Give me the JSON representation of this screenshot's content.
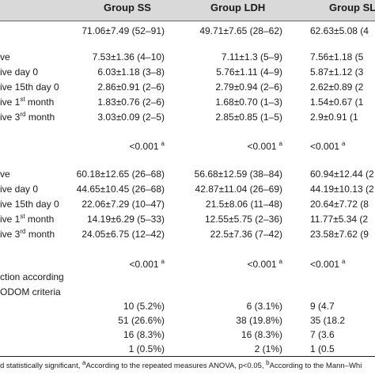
{
  "header": {
    "col1": "Group SS",
    "col2": "Group LDH",
    "col3": "Group SLI"
  },
  "rows": [
    {
      "label": "",
      "c1": "71.06±7.49 (52–91)",
      "c2": "49.71±7.65 (28–62)",
      "c3": "62.63±5.08 (4"
    },
    {
      "label": "ve",
      "c1": "7.53±1.36 (4–10)",
      "c2": "7.11±1.3 (5–9)",
      "c3": "7.56±1.18 (5"
    },
    {
      "label": "ive day 0",
      "c1": "6.03±1.18 (3–8)",
      "c2": "5.76±1.11 (4–9)",
      "c3": "5.87±1.12 (3"
    },
    {
      "label": "ive 15th day 0",
      "c1": "2.86±0.91 (2–6)",
      "c2": "2.79±0.94 (2–6)",
      "c3": "2.62±0.89 (2"
    },
    {
      "label_pre": "ive 1",
      "label_sup": "st",
      "label_post": " month",
      "c1": "1.83±0.76 (2–6)",
      "c2": "1.68±0.70 (1–3)",
      "c3": "1.54±0.67 (1"
    },
    {
      "label_pre": "ive 3",
      "label_sup": "rd",
      "label_post": " month",
      "c1": "3.03±0.09 (2–5)",
      "c2": "2.85±0.85 (1–5)",
      "c3": "2.9±0.91 (1"
    },
    {
      "label": "",
      "c1": "<0.001",
      "c1_sup": "a",
      "c2": "<0.001",
      "c2_sup": "a",
      "c3": "<0.001",
      "c3_sup": "a"
    },
    {
      "label": "ve",
      "c1": "60.18±12.65 (26–68)",
      "c2": "56.68±12.59 (38–84)",
      "c3": "60.94±12.44 (2"
    },
    {
      "label": "ive day 0",
      "c1": "44.65±10.45 (26–68)",
      "c2": "42.87±11.04 (26–69)",
      "c3": "44.19±10.13 (2"
    },
    {
      "label": "ive 15th day 0",
      "c1": "22.06±7.29 (10–47)",
      "c2": "21.5±8.06 (11–48)",
      "c3": "20.64±7.72 (8"
    },
    {
      "label_pre": "ive 1",
      "label_sup": "st",
      "label_post": " month",
      "c1": "14.19±6.29 (5–33)",
      "c2": "12.55±5.75 (2–36)",
      "c3": "11.77±5.34 (2"
    },
    {
      "label_pre": "ive 3",
      "label_sup": "rd",
      "label_post": " month",
      "c1": "24.05±6.75 (12–42)",
      "c2": "22.5±7.36 (7–42)",
      "c3": "23.58±7.62 (9"
    },
    {
      "label": "",
      "c1": "<0.001",
      "c1_sup": "a",
      "c2": "<0.001",
      "c2_sup": "a",
      "c3": "<0.001",
      "c3_sup": "a"
    },
    {
      "label": "ction according",
      "c1": "",
      "c2": "",
      "c3": ""
    },
    {
      "label": " ODOM criteria",
      "c1": "",
      "c2": "",
      "c3": ""
    },
    {
      "label": "",
      "c1": "10 (5.2%)",
      "c2": "6 (3.1%)",
      "c3": "9 (4.7"
    },
    {
      "label": "",
      "c1": "51 (26.6%)",
      "c2": "38 (19.8%)",
      "c3": "35 (18.2"
    },
    {
      "label": "",
      "c1": "16 (8.3%)",
      "c2": "16 (8.3%)",
      "c3": "7 (3.6"
    },
    {
      "label": "",
      "c1": "1 (0.5%)",
      "c2": "2 (1%)",
      "c3": "1 (0.5"
    }
  ],
  "footnote": {
    "pre": "d statistically significant, ",
    "sup_a": "a",
    "mid": "According to the repeated measures ANOVA, p<0.05, ",
    "sup_b": "b",
    "post": "According to the Mann–Whi"
  }
}
